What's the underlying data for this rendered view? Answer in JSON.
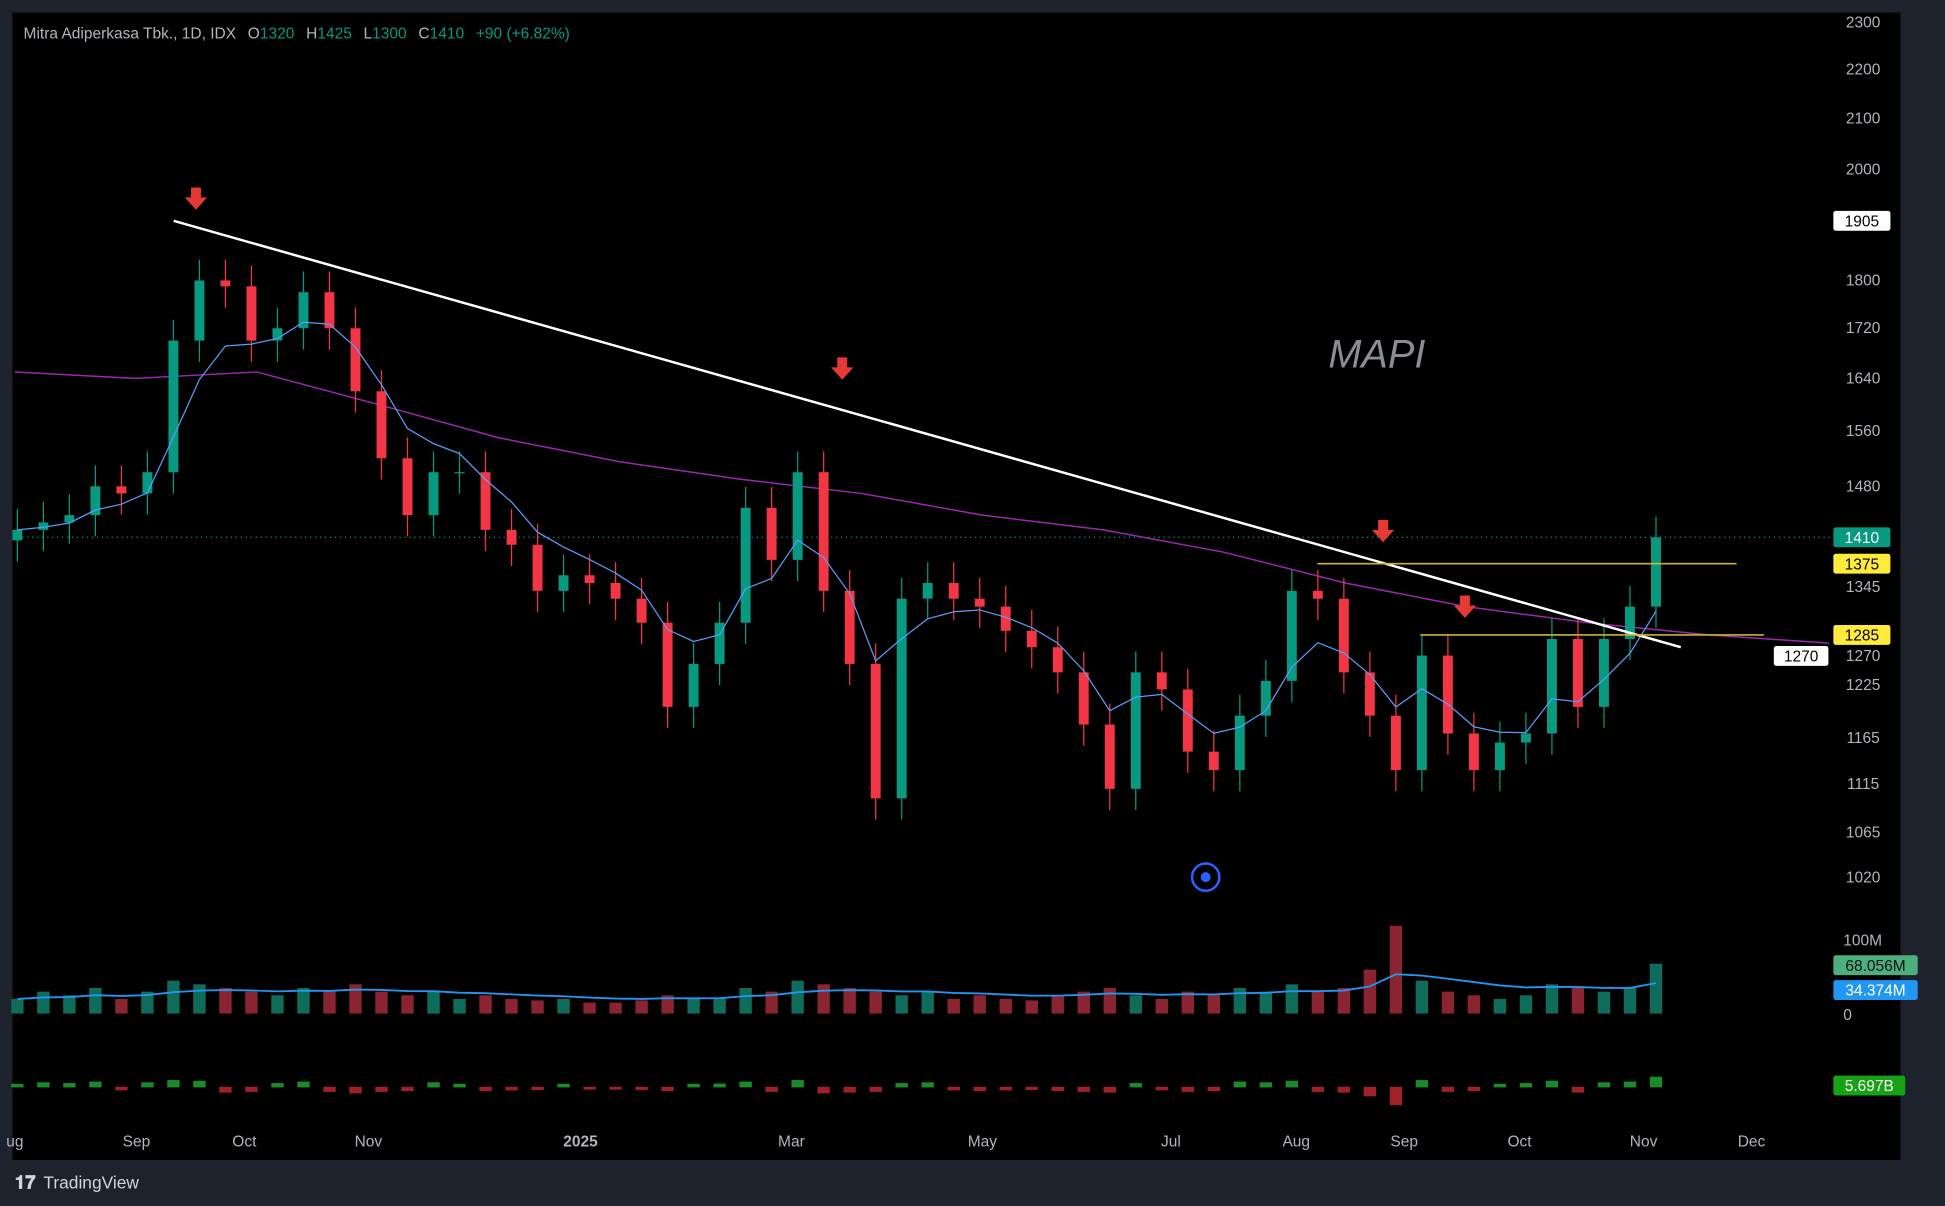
{
  "header": {
    "symbol": "Mitra Adiperkasa Tbk., 1D, IDX",
    "o_label": "O",
    "o": "1320",
    "h_label": "H",
    "h": "1425",
    "l_label": "L",
    "l": "1300",
    "c_label": "C",
    "c": "1410",
    "change": "+90 (+6.82%)"
  },
  "watermark": "MAPI",
  "brand": "TradingView",
  "colors": {
    "up": "#089981",
    "down": "#f23645",
    "ma_short": "#5b9cf6",
    "ma_long": "#9c27b0",
    "trendline": "#ffffff",
    "levels": "#c9b628",
    "arrows": "#e53935"
  },
  "chart_data": {
    "type": "candlestick",
    "interval": "1D",
    "scale": "log",
    "ylim": [
      1000,
      2320
    ],
    "price_ticks": [
      2300,
      2200,
      2100,
      2000,
      1800,
      1720,
      1640,
      1560,
      1480,
      1345,
      1270,
      1225,
      1165,
      1115,
      1065,
      1020
    ],
    "x_ticks": [
      "ug",
      "Sep",
      "Oct",
      "Nov",
      "2025",
      "Mar",
      "May",
      "Jul",
      "Aug",
      "Sep",
      "Oct",
      "Nov",
      "Dec"
    ],
    "closes": [
      1420,
      1430,
      1440,
      1480,
      1470,
      1500,
      1700,
      1800,
      1790,
      1700,
      1720,
      1780,
      1720,
      1620,
      1520,
      1440,
      1500,
      1500,
      1420,
      1400,
      1340,
      1360,
      1350,
      1330,
      1300,
      1200,
      1250,
      1300,
      1450,
      1380,
      1500,
      1340,
      1250,
      1100,
      1330,
      1350,
      1330,
      1320,
      1290,
      1270,
      1240,
      1180,
      1110,
      1240,
      1220,
      1150,
      1130,
      1190,
      1230,
      1340,
      1330,
      1240,
      1190,
      1130,
      1260,
      1170,
      1130,
      1160,
      1170,
      1280,
      1200,
      1280,
      1320,
      1410
    ],
    "volume_m": [
      20,
      30,
      25,
      35,
      20,
      30,
      45,
      40,
      35,
      30,
      25,
      35,
      30,
      40,
      30,
      25,
      30,
      20,
      25,
      20,
      18,
      20,
      15,
      15,
      18,
      25,
      20,
      22,
      35,
      30,
      45,
      40,
      35,
      30,
      25,
      30,
      20,
      25,
      20,
      18,
      25,
      30,
      35,
      25,
      20,
      30,
      25,
      35,
      30,
      40,
      30,
      35,
      60,
      120,
      45,
      30,
      25,
      20,
      25,
      40,
      35,
      30,
      35,
      68
    ],
    "ma_long_monthly": [
      [
        "2024-08",
        1650
      ],
      [
        "2024-09",
        1640
      ],
      [
        "2024-10",
        1650
      ],
      [
        "2024-11",
        1600
      ],
      [
        "2024-12",
        1550
      ],
      [
        "2025-01",
        1515
      ],
      [
        "2025-02",
        1490
      ],
      [
        "2025-03",
        1470
      ],
      [
        "2025-04",
        1440
      ],
      [
        "2025-05",
        1420
      ],
      [
        "2025-06",
        1390
      ],
      [
        "2025-07",
        1350
      ],
      [
        "2025-08",
        1320
      ],
      [
        "2025-09",
        1300
      ],
      [
        "2025-10",
        1285
      ],
      [
        "2025-11",
        1275
      ]
    ],
    "trendline": {
      "start_price": 1905,
      "end_price": 1270
    },
    "levels": [
      1375,
      1285
    ],
    "price_labels": {
      "last": "1410",
      "level_high": "1375",
      "level_low": "1285",
      "trend_start": "1905",
      "covered": "1270"
    },
    "volume_ticks": [
      "100M",
      "0"
    ],
    "volume_labels": {
      "volume": "68.056M",
      "volume_ma": "34.374M"
    },
    "flow_label": "5.697B"
  }
}
